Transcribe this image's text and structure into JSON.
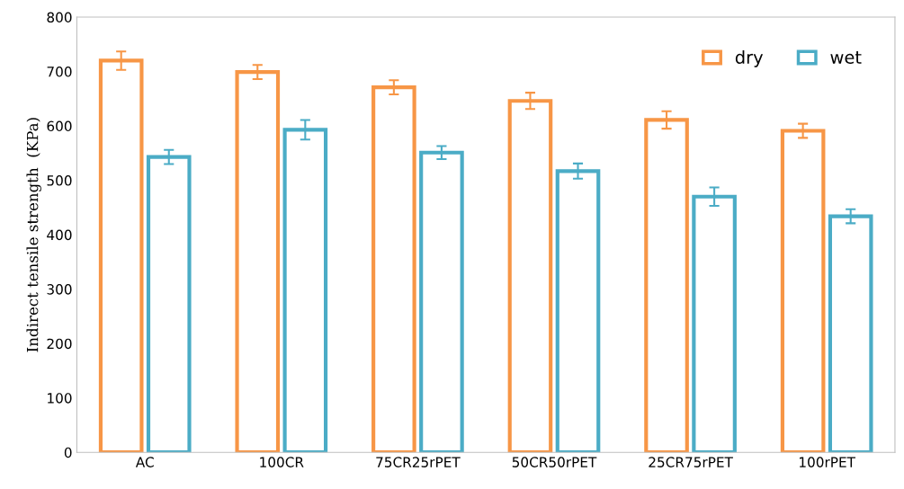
{
  "chart_data": {
    "type": "bar",
    "ylabel": "Indirect tensile strength  (KPa)",
    "categories": [
      "AC",
      "100CR",
      "75CR25rPET",
      "50CR50rPET",
      "25CR75rPET",
      "100rPET"
    ],
    "series": [
      {
        "name": "dry",
        "color": "#f79646",
        "values": [
          720,
          699,
          671,
          646,
          611,
          591
        ],
        "errors": [
          17,
          13,
          13,
          15,
          16,
          13
        ]
      },
      {
        "name": "wet",
        "color": "#4bacc6",
        "values": [
          543,
          593,
          551,
          517,
          470,
          434
        ],
        "errors": [
          13,
          18,
          12,
          14,
          17,
          13
        ]
      }
    ],
    "ylim": [
      0,
      800
    ],
    "yticks": [
      0,
      100,
      200,
      300,
      400,
      500,
      600,
      700,
      800
    ],
    "grid": false,
    "legend": "top right"
  }
}
